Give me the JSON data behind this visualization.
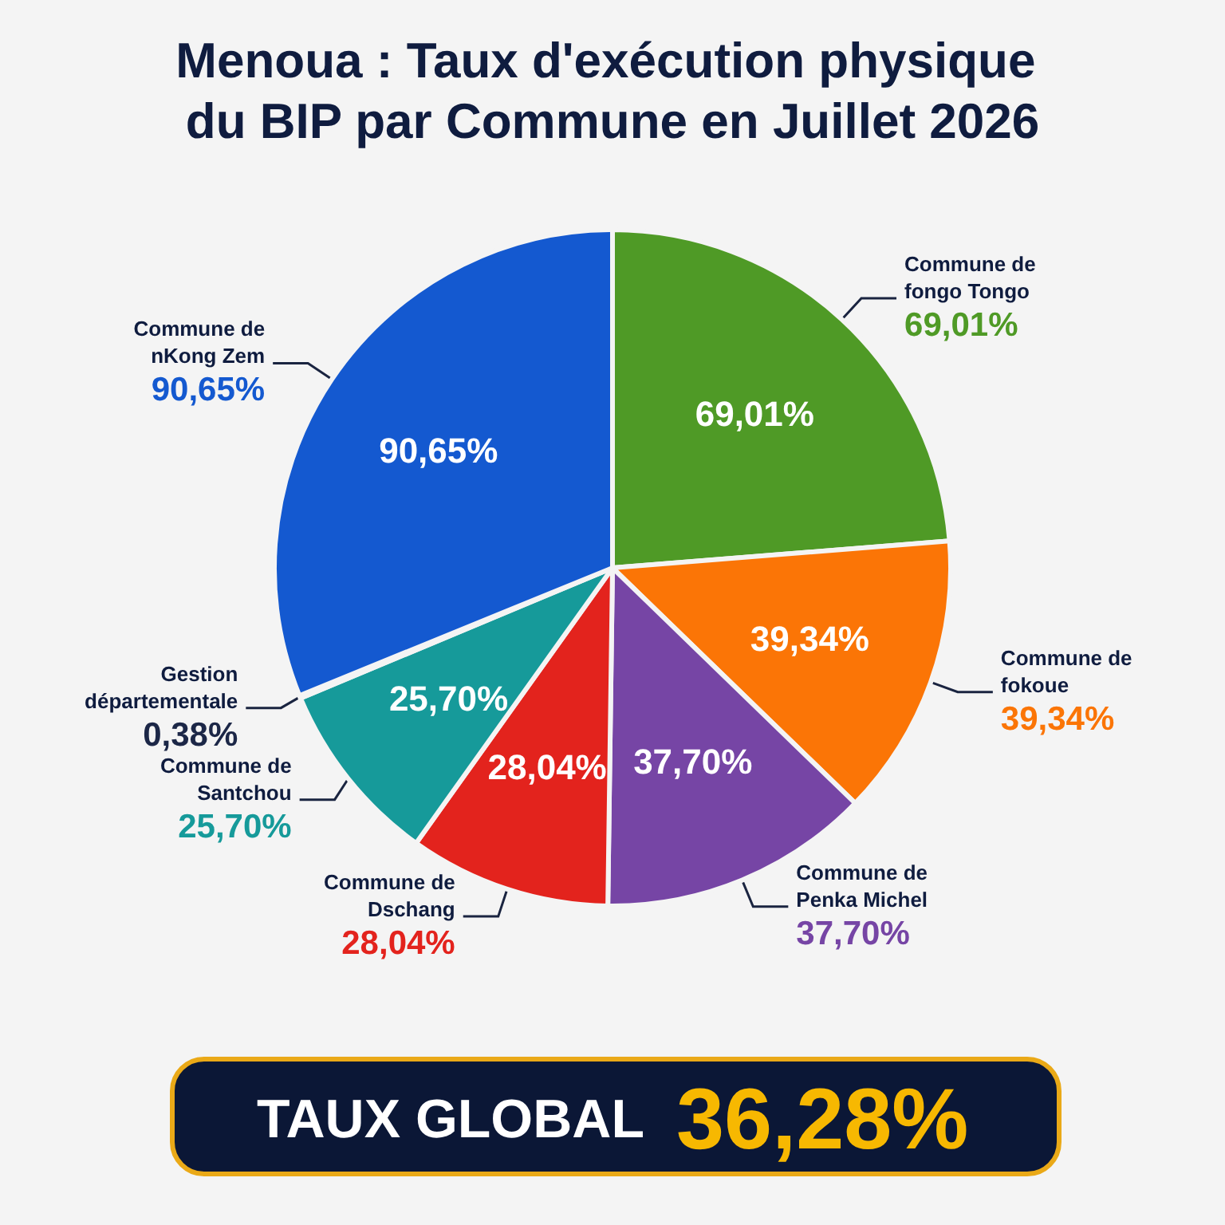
{
  "chart_data": {
    "type": "pie",
    "title": "Menoua : Taux d'exécution physique du BIP par Commune en Juillet 2026",
    "categories": [
      "Commune de fongo Tongo",
      "Commune de fokoue",
      "Commune de Penka Michel",
      "Commune de Dschang",
      "Commune de Santchou",
      "Gestion départementale",
      "Commune de nKong Zem"
    ],
    "values": [
      69.01,
      39.34,
      37.7,
      28.04,
      25.7,
      0.38,
      90.65
    ],
    "colors": [
      "#4f9a26",
      "#fb7506",
      "#7645a5",
      "#e3231d",
      "#169a9a",
      "#1c2747",
      "#1459d0"
    ],
    "value_labels": [
      "69,01%",
      "39,34%",
      "37,70%",
      "28,04%",
      "25,70%",
      "0,38%",
      "90,65%"
    ],
    "annotations": [
      "TAUX GLOBAL",
      "36,28%"
    ]
  }
}
